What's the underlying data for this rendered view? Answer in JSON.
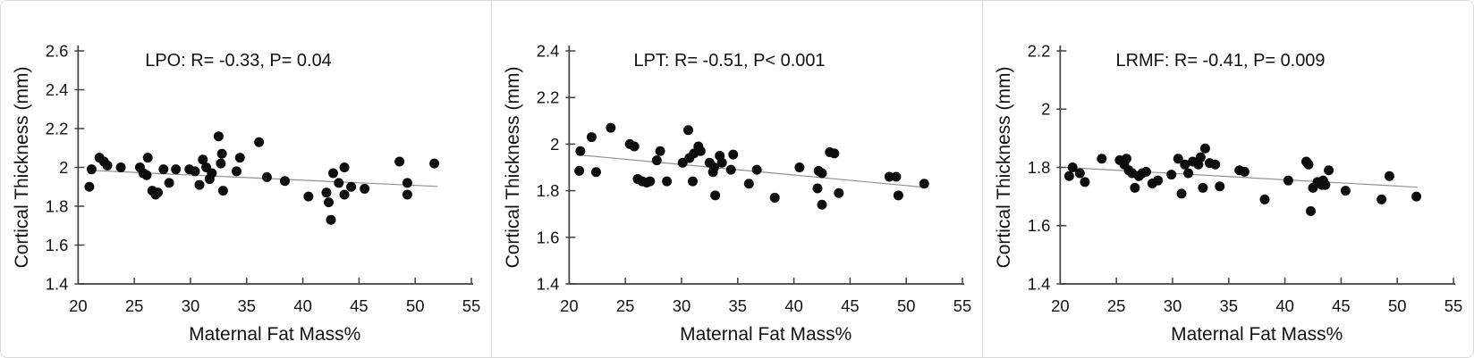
{
  "figure": {
    "description": "Three scatter plots of cortical thickness vs maternal fat mass percentage",
    "colors": {
      "background": "#ffffff",
      "panel_border": "#d9d9d9",
      "axis": "#404040",
      "text": "#111111",
      "point": "#0d0d0d",
      "trend": "#919191"
    }
  },
  "chart_data": [
    {
      "type": "scatter",
      "title": "LPO: R= -0.33, P= 0.04",
      "region": "LPO",
      "r_value": "-0.33",
      "p_value": "= 0.04",
      "xlabel": "Maternal Fat Mass%",
      "ylabel": "Cortical Thickness (mm)",
      "xlim": [
        20,
        55
      ],
      "ylim": [
        1.4,
        2.6
      ],
      "xticks": [
        20,
        25,
        30,
        35,
        40,
        45,
        50,
        55
      ],
      "yticks": [
        1.4,
        1.6,
        1.8,
        2,
        2.2,
        2.4,
        2.6
      ],
      "grid": false,
      "legend": null,
      "trendline": {
        "x1": 21.0,
        "y1": 1.985,
        "x2": 52.0,
        "y2": 1.902
      },
      "points": [
        [
          21.0,
          1.9
        ],
        [
          21.2,
          1.99
        ],
        [
          21.9,
          2.05
        ],
        [
          22.3,
          2.03
        ],
        [
          22.6,
          2.01
        ],
        [
          23.8,
          2.0
        ],
        [
          25.5,
          2.0
        ],
        [
          25.8,
          1.97
        ],
        [
          26.1,
          1.96
        ],
        [
          26.2,
          2.05
        ],
        [
          26.6,
          1.88
        ],
        [
          26.9,
          1.86
        ],
        [
          27.1,
          1.87
        ],
        [
          27.6,
          1.99
        ],
        [
          28.1,
          1.92
        ],
        [
          28.7,
          1.99
        ],
        [
          29.9,
          1.99
        ],
        [
          30.4,
          1.98
        ],
        [
          30.8,
          1.91
        ],
        [
          31.1,
          2.04
        ],
        [
          31.4,
          2.0
        ],
        [
          31.7,
          1.94
        ],
        [
          31.9,
          1.97
        ],
        [
          32.5,
          2.16
        ],
        [
          32.7,
          2.02
        ],
        [
          32.8,
          2.07
        ],
        [
          32.9,
          1.88
        ],
        [
          34.1,
          1.98
        ],
        [
          34.4,
          2.05
        ],
        [
          36.1,
          2.13
        ],
        [
          36.8,
          1.95
        ],
        [
          38.4,
          1.93
        ],
        [
          40.5,
          1.85
        ],
        [
          42.1,
          1.87
        ],
        [
          42.3,
          1.82
        ],
        [
          42.5,
          1.73
        ],
        [
          42.7,
          1.97
        ],
        [
          43.2,
          1.92
        ],
        [
          43.7,
          2.0
        ],
        [
          43.7,
          1.86
        ],
        [
          44.3,
          1.9
        ],
        [
          45.5,
          1.89
        ],
        [
          48.6,
          2.03
        ],
        [
          49.3,
          1.92
        ],
        [
          49.3,
          1.86
        ],
        [
          51.7,
          2.02
        ]
      ]
    },
    {
      "type": "scatter",
      "title": "LPT: R= -0.51, P< 0.001",
      "region": "LPT",
      "r_value": "-0.51",
      "p_value": "< 0.001",
      "xlabel": "Maternal Fat Mass%",
      "ylabel": "Cortical Thickness (mm)",
      "xlim": [
        20,
        55
      ],
      "ylim": [
        1.4,
        2.4
      ],
      "xticks": [
        20,
        25,
        30,
        35,
        40,
        45,
        50,
        55
      ],
      "yticks": [
        1.4,
        1.6,
        1.8,
        2,
        2.2,
        2.4
      ],
      "grid": false,
      "legend": null,
      "trendline": {
        "x1": 21.0,
        "y1": 1.953,
        "x2": 51.8,
        "y2": 1.814
      },
      "points": [
        [
          20.9,
          1.885
        ],
        [
          21.0,
          1.97
        ],
        [
          22.0,
          2.03
        ],
        [
          22.4,
          1.88
        ],
        [
          23.7,
          2.07
        ],
        [
          25.4,
          2.0
        ],
        [
          25.8,
          1.99
        ],
        [
          26.1,
          1.85
        ],
        [
          26.5,
          1.84
        ],
        [
          26.9,
          1.835
        ],
        [
          27.2,
          1.84
        ],
        [
          27.8,
          1.93
        ],
        [
          28.1,
          1.97
        ],
        [
          28.7,
          1.84
        ],
        [
          30.1,
          1.92
        ],
        [
          30.6,
          2.06
        ],
        [
          30.7,
          1.94
        ],
        [
          31.0,
          1.84
        ],
        [
          31.1,
          1.96
        ],
        [
          31.5,
          1.99
        ],
        [
          31.7,
          1.97
        ],
        [
          32.5,
          1.92
        ],
        [
          32.8,
          1.88
        ],
        [
          32.9,
          1.9
        ],
        [
          33.0,
          1.78
        ],
        [
          33.4,
          1.95
        ],
        [
          33.6,
          1.92
        ],
        [
          34.4,
          1.89
        ],
        [
          34.6,
          1.955
        ],
        [
          36.0,
          1.83
        ],
        [
          36.7,
          1.89
        ],
        [
          38.3,
          1.77
        ],
        [
          40.5,
          1.9
        ],
        [
          42.1,
          1.81
        ],
        [
          42.2,
          1.885
        ],
        [
          42.5,
          1.875
        ],
        [
          42.5,
          1.74
        ],
        [
          43.2,
          1.965
        ],
        [
          43.6,
          1.96
        ],
        [
          44.0,
          1.79
        ],
        [
          48.5,
          1.86
        ],
        [
          49.1,
          1.86
        ],
        [
          49.3,
          1.78
        ],
        [
          51.6,
          1.83
        ]
      ]
    },
    {
      "type": "scatter",
      "title": "LRMF: R= -0.41, P= 0.009",
      "region": "LRMF",
      "r_value": "-0.41",
      "p_value": "= 0.009",
      "xlabel": "Maternal Fat Mass%",
      "ylabel": "Cortical Thickness (mm)",
      "xlim": [
        20,
        55
      ],
      "ylim": [
        1.4,
        2.2
      ],
      "xticks": [
        20,
        25,
        30,
        35,
        40,
        45,
        50,
        55
      ],
      "yticks": [
        1.4,
        1.6,
        1.8,
        2,
        2.2
      ],
      "grid": false,
      "legend": null,
      "trendline": {
        "x1": 20.5,
        "y1": 1.8,
        "x2": 51.8,
        "y2": 1.732
      },
      "points": [
        [
          20.8,
          1.77
        ],
        [
          21.1,
          1.8
        ],
        [
          21.75,
          1.78
        ],
        [
          22.2,
          1.75
        ],
        [
          23.7,
          1.83
        ],
        [
          25.3,
          1.825
        ],
        [
          25.7,
          1.81
        ],
        [
          25.9,
          1.83
        ],
        [
          26.1,
          1.79
        ],
        [
          26.4,
          1.78
        ],
        [
          26.65,
          1.73
        ],
        [
          27.0,
          1.77
        ],
        [
          27.3,
          1.78
        ],
        [
          27.65,
          1.785
        ],
        [
          28.2,
          1.745
        ],
        [
          28.7,
          1.755
        ],
        [
          29.9,
          1.775
        ],
        [
          30.5,
          1.83
        ],
        [
          30.8,
          1.71
        ],
        [
          31.1,
          1.81
        ],
        [
          31.4,
          1.78
        ],
        [
          31.8,
          1.82
        ],
        [
          32.3,
          1.81
        ],
        [
          32.5,
          1.835
        ],
        [
          32.7,
          1.73
        ],
        [
          32.9,
          1.865
        ],
        [
          33.3,
          1.815
        ],
        [
          33.8,
          1.81
        ],
        [
          34.2,
          1.735
        ],
        [
          35.95,
          1.79
        ],
        [
          36.4,
          1.785
        ],
        [
          38.2,
          1.69
        ],
        [
          40.3,
          1.755
        ],
        [
          41.9,
          1.82
        ],
        [
          42.1,
          1.81
        ],
        [
          42.3,
          1.65
        ],
        [
          42.5,
          1.73
        ],
        [
          42.9,
          1.75
        ],
        [
          43.3,
          1.74
        ],
        [
          43.4,
          1.755
        ],
        [
          43.6,
          1.74
        ],
        [
          43.9,
          1.79
        ],
        [
          45.4,
          1.72
        ],
        [
          48.6,
          1.69
        ],
        [
          49.3,
          1.77
        ],
        [
          51.7,
          1.7
        ]
      ]
    }
  ]
}
